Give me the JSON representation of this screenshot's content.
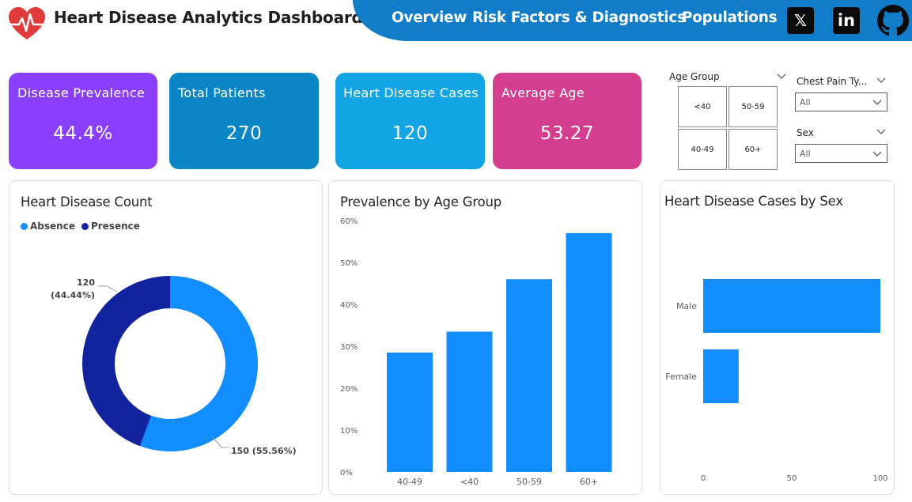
{
  "header": {
    "title": "Heart Disease Analytics Dashboard",
    "nav": [
      "Overview",
      "Risk Factors & Diagnostics",
      "Populations"
    ],
    "social": [
      {
        "name": "x",
        "glyph": "𝕏"
      },
      {
        "name": "linkedin",
        "glyph": "in"
      },
      {
        "name": "github",
        "glyph": ""
      }
    ]
  },
  "colors": {
    "nav": "#117dc9",
    "prevalence": "#8a3ffc",
    "patients": "#0a86c7",
    "cases": "#12a4e4",
    "age": "#d43e8f",
    "absence": "#118dff",
    "presence": "#12239e",
    "bar": "#118dff"
  },
  "kpis": [
    {
      "label": "Disease Prevalence",
      "value": "44.4%"
    },
    {
      "label": "Total Patients",
      "value": "270"
    },
    {
      "label": "Heart Disease Cases",
      "value": "120"
    },
    {
      "label": "Average Age",
      "value": "53.27"
    }
  ],
  "slicers": {
    "age_group": {
      "title": "Age Group",
      "options": [
        "<40",
        "50-59",
        "40-49",
        "60+"
      ]
    },
    "chest_pain": {
      "title": "Chest Pain Ty...",
      "value": "All"
    },
    "sex": {
      "title": "Sex",
      "value": "All"
    }
  },
  "charts": {
    "count_title": "Heart Disease Count",
    "age_title": "Prevalence by Age Group",
    "sex_title": "Heart Disease Cases by Sex"
  },
  "chart_data": [
    {
      "type": "pie",
      "title": "Heart Disease Count",
      "legend": [
        "Absence",
        "Presence"
      ],
      "legend_position": "top-left",
      "slices": [
        {
          "name": "Absence",
          "value": 150,
          "label": "150 (55.56%)"
        },
        {
          "name": "Presence",
          "value": 120,
          "label": "120 (44.44%)"
        }
      ]
    },
    {
      "type": "bar",
      "title": "Prevalence by Age Group",
      "categories": [
        "40-49",
        "<40",
        "50-59",
        "60+"
      ],
      "values": [
        28.5,
        33.5,
        46,
        57
      ],
      "ylim": [
        0,
        60
      ],
      "yticks": [
        "0%",
        "10%",
        "20%",
        "30%",
        "40%",
        "50%",
        "60%"
      ],
      "grid": false
    },
    {
      "type": "bar",
      "orientation": "horizontal",
      "title": "Heart Disease Cases by Sex",
      "categories": [
        "Male",
        "Female"
      ],
      "values": [
        100,
        20
      ],
      "xlim": [
        0,
        100
      ],
      "xticks": [
        "0",
        "50",
        "100"
      ],
      "grid": false
    }
  ]
}
